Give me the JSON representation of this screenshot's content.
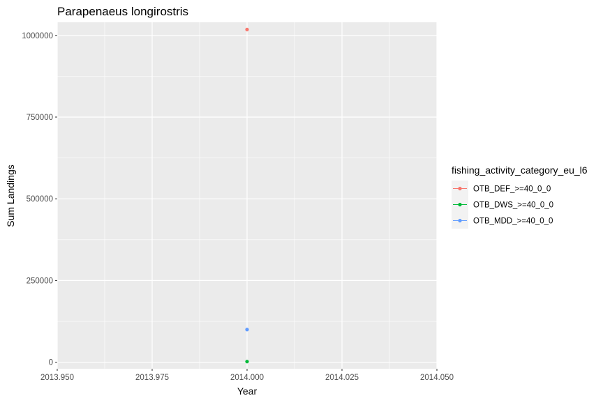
{
  "chart_data": {
    "type": "line",
    "title": "Parapenaeus longirostris",
    "xlabel": "Year",
    "ylabel": "Sum Landings",
    "xlim": [
      2013.95,
      2014.05
    ],
    "ylim": [
      -20000,
      1040000
    ],
    "x_ticks": [
      2013.95,
      2013.975,
      2014.0,
      2014.025,
      2014.05
    ],
    "x_tick_labels": [
      "2013.950",
      "2013.975",
      "2014.000",
      "2014.025",
      "2014.050"
    ],
    "y_ticks": [
      0,
      250000,
      500000,
      750000,
      1000000
    ],
    "y_tick_labels": [
      "0",
      "250000",
      "500000",
      "750000",
      "1000000"
    ],
    "grid": true,
    "legend_title": "fishing_activity_category_eu_l6",
    "legend_position": "right",
    "series": [
      {
        "name": "OTB_DEF_>=40_0_0",
        "color": "#F8766D",
        "x": [
          2014.0
        ],
        "y": [
          1018000
        ]
      },
      {
        "name": "OTB_DWS_>=40_0_0",
        "color": "#00BA38",
        "x": [
          2014.0
        ],
        "y": [
          2000
        ]
      },
      {
        "name": "OTB_MDD_>=40_0_0",
        "color": "#619CFF",
        "x": [
          2014.0
        ],
        "y": [
          100000
        ]
      }
    ]
  }
}
